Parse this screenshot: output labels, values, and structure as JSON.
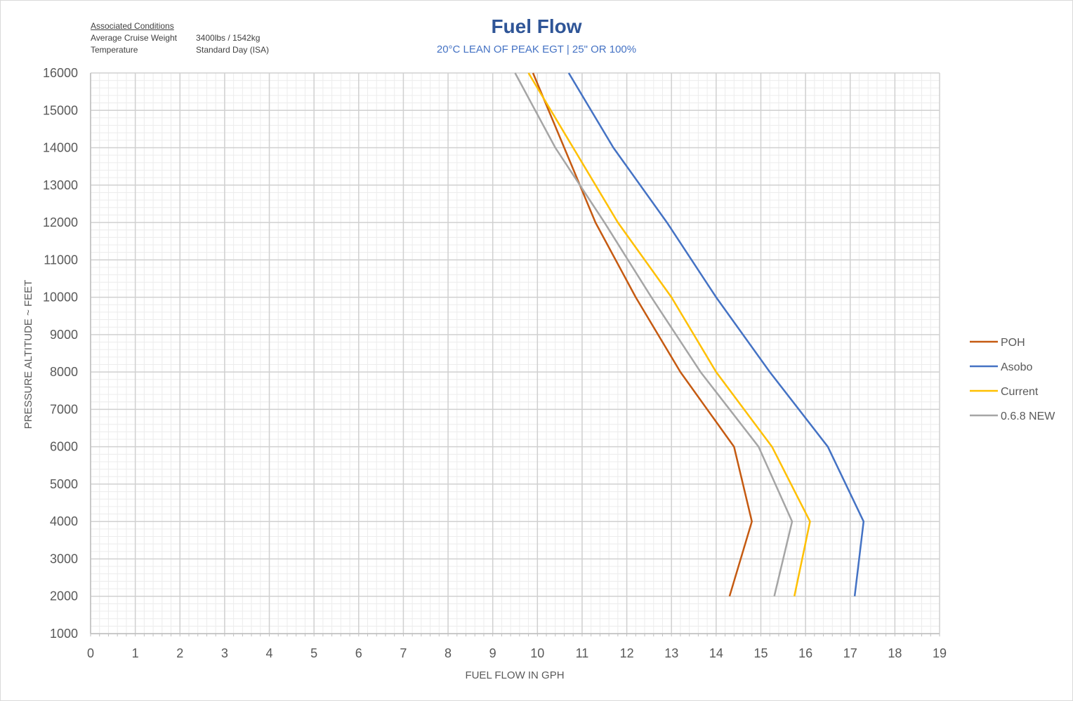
{
  "conditions": {
    "header": "Associated Conditions",
    "rows": [
      {
        "label": "Average Cruise Weight",
        "value": "3400lbs / 1542kg"
      },
      {
        "label": "Temperature",
        "value": "Standard Day (ISA)"
      }
    ]
  },
  "chart_data": {
    "type": "line",
    "title": "Fuel Flow",
    "subtitle": "20°C LEAN OF PEAK EGT | 25\" OR 100%",
    "xlabel": "FUEL FLOW IN GPH",
    "ylabel": "PRESSURE ALTITUDE ~ FEET",
    "xlim": [
      0,
      19
    ],
    "ylim": [
      1000,
      16000
    ],
    "xticks": [
      "0",
      "1",
      "2",
      "3",
      "4",
      "5",
      "6",
      "7",
      "8",
      "9",
      "10",
      "11",
      "12",
      "13",
      "14",
      "15",
      "16",
      "17",
      "18",
      "19"
    ],
    "yticks": [
      "1000",
      "2000",
      "3000",
      "4000",
      "5000",
      "6000",
      "7000",
      "8000",
      "9000",
      "10000",
      "11000",
      "12000",
      "13000",
      "14000",
      "15000",
      "16000"
    ],
    "grid": true,
    "legend_position": "right",
    "series": [
      {
        "name": "POH",
        "color": "#C55A11",
        "points": [
          [
            14.3,
            2000
          ],
          [
            14.8,
            4000
          ],
          [
            14.4,
            6000
          ],
          [
            13.2,
            8000
          ],
          [
            12.2,
            10000
          ],
          [
            11.3,
            12000
          ],
          [
            10.6,
            14000
          ],
          [
            9.9,
            16000
          ]
        ]
      },
      {
        "name": "Asobo",
        "color": "#4472C4",
        "points": [
          [
            17.1,
            2000
          ],
          [
            17.3,
            4000
          ],
          [
            16.5,
            6000
          ],
          [
            15.2,
            8000
          ],
          [
            14.0,
            10000
          ],
          [
            12.9,
            12000
          ],
          [
            11.7,
            14000
          ],
          [
            10.7,
            16000
          ]
        ]
      },
      {
        "name": "Current",
        "color": "#FFC000",
        "points": [
          [
            15.75,
            2000
          ],
          [
            16.1,
            4000
          ],
          [
            15.25,
            6000
          ],
          [
            14.0,
            8000
          ],
          [
            13.0,
            10000
          ],
          [
            11.8,
            12000
          ],
          [
            10.8,
            14000
          ],
          [
            9.8,
            16000
          ]
        ]
      },
      {
        "name": "0.6.8 NEW",
        "color": "#A5A5A5",
        "points": [
          [
            15.3,
            2000
          ],
          [
            15.7,
            4000
          ],
          [
            14.95,
            6000
          ],
          [
            13.65,
            8000
          ],
          [
            12.55,
            10000
          ],
          [
            11.5,
            12000
          ],
          [
            10.4,
            14000
          ],
          [
            9.5,
            16000
          ]
        ]
      }
    ]
  }
}
